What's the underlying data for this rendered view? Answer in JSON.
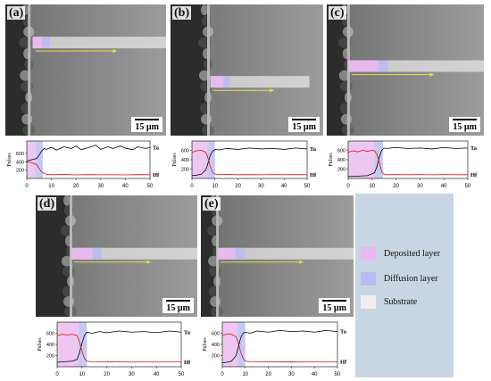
{
  "panels": [
    {
      "label": "(a)",
      "scale": "15 µm",
      "deposit_end": 3.5,
      "diff_end": 6.5
    },
    {
      "label": "(b)",
      "scale": "15 µm",
      "deposit_end": 6.5,
      "diff_end": 10
    },
    {
      "label": "(c)",
      "scale": "15 µm",
      "deposit_end": 11,
      "diff_end": 14.5
    },
    {
      "label": "(d)",
      "scale": "15 µm",
      "deposit_end": 8.5,
      "diff_end": 12
    },
    {
      "label": "(e)",
      "scale": "15 µm",
      "deposit_end": 6.5,
      "diff_end": 10
    }
  ],
  "legend": {
    "items": [
      {
        "label": "Deposited layer",
        "color": "#e9b8ef"
      },
      {
        "label": "Diffusion layer",
        "color": "#b9bcf0"
      },
      {
        "label": "Substrate",
        "color": "#eeeeee"
      }
    ]
  },
  "chart_data": [
    {
      "type": "line",
      "panel": "(a)",
      "ylabel": "Pulses",
      "ylim": [
        0,
        900
      ],
      "xlim": [
        0,
        50
      ],
      "x_ticks": [
        0,
        10,
        20,
        30,
        40,
        50
      ],
      "y_ticks": [
        200,
        400,
        600
      ],
      "series": [
        {
          "name": "Ta",
          "color": "#000000",
          "x": [
            0,
            2,
            4,
            5,
            6,
            7,
            8,
            10,
            12,
            15,
            18,
            20,
            22,
            25,
            28,
            30,
            33,
            35,
            38,
            40,
            43,
            45,
            48,
            50
          ],
          "y": [
            420,
            450,
            480,
            560,
            650,
            720,
            700,
            750,
            680,
            760,
            720,
            780,
            690,
            740,
            800,
            700,
            760,
            720,
            780,
            730,
            690,
            760,
            720,
            740
          ]
        },
        {
          "name": "Hf",
          "color": "#e01010",
          "x": [
            0,
            2,
            4,
            5,
            6,
            7,
            8,
            10,
            15,
            20,
            25,
            30,
            35,
            40,
            45,
            50
          ],
          "y": [
            400,
            380,
            330,
            240,
            160,
            120,
            100,
            90,
            95,
            85,
            92,
            88,
            90,
            86,
            92,
            90
          ]
        }
      ]
    },
    {
      "type": "line",
      "panel": "(b)",
      "ylabel": "Pulses",
      "ylim": [
        0,
        800
      ],
      "xlim": [
        0,
        50
      ],
      "x_ticks": [
        0,
        10,
        20,
        30,
        40,
        50
      ],
      "y_ticks": [
        200,
        400,
        600
      ],
      "series": [
        {
          "name": "Ta",
          "color": "#000000",
          "x": [
            0,
            2,
            4,
            6,
            7,
            8,
            9,
            10,
            12,
            15,
            20,
            25,
            30,
            35,
            40,
            45,
            50
          ],
          "y": [
            60,
            70,
            90,
            180,
            330,
            500,
            580,
            620,
            610,
            640,
            620,
            650,
            630,
            640,
            620,
            650,
            630
          ]
        },
        {
          "name": "Hf",
          "color": "#e01010",
          "x": [
            0,
            2,
            4,
            6,
            7,
            8,
            9,
            10,
            12,
            15,
            20,
            25,
            30,
            35,
            40,
            45,
            50
          ],
          "y": [
            560,
            590,
            600,
            560,
            430,
            250,
            130,
            90,
            80,
            85,
            80,
            82,
            78,
            84,
            80,
            82,
            80
          ]
        }
      ]
    },
    {
      "type": "line",
      "panel": "(c)",
      "ylabel": "Pulses",
      "ylim": [
        0,
        800
      ],
      "xlim": [
        0,
        50
      ],
      "x_ticks": [
        0,
        10,
        20,
        30,
        40,
        50
      ],
      "y_ticks": [
        200,
        400,
        600
      ],
      "series": [
        {
          "name": "Ta",
          "color": "#000000",
          "x": [
            0,
            4,
            8,
            11,
            12,
            13,
            14,
            15,
            16,
            20,
            25,
            30,
            35,
            40,
            45,
            50
          ],
          "y": [
            40,
            50,
            60,
            120,
            250,
            450,
            600,
            650,
            640,
            660,
            640,
            650,
            630,
            660,
            640,
            650
          ]
        },
        {
          "name": "Hf",
          "color": "#e01010",
          "x": [
            0,
            2,
            4,
            6,
            8,
            10,
            11,
            12,
            13,
            14,
            15,
            16,
            20,
            25,
            30,
            35,
            40,
            45,
            50
          ],
          "y": [
            560,
            590,
            570,
            600,
            580,
            600,
            590,
            520,
            350,
            150,
            90,
            80,
            82,
            80,
            84,
            78,
            82,
            80,
            80
          ]
        }
      ]
    },
    {
      "type": "line",
      "panel": "(d)",
      "ylabel": "Pulses",
      "ylim": [
        0,
        800
      ],
      "xlim": [
        0,
        50
      ],
      "x_ticks": [
        0,
        10,
        20,
        30,
        40,
        50
      ],
      "y_ticks": [
        200,
        400,
        600
      ],
      "series": [
        {
          "name": "Ta",
          "color": "#000000",
          "x": [
            0,
            3,
            6,
            8,
            9,
            10,
            11,
            12,
            14,
            17,
            20,
            25,
            30,
            35,
            40,
            45,
            50
          ],
          "y": [
            80,
            90,
            100,
            130,
            250,
            420,
            560,
            620,
            600,
            630,
            610,
            640,
            620,
            630,
            610,
            640,
            620
          ]
        },
        {
          "name": "Hf",
          "color": "#e01010",
          "x": [
            0,
            2,
            4,
            6,
            8,
            9,
            10,
            11,
            12,
            14,
            17,
            20,
            25,
            30,
            35,
            40,
            45,
            50
          ],
          "y": [
            560,
            580,
            570,
            580,
            560,
            450,
            280,
            150,
            100,
            90,
            88,
            85,
            88,
            84,
            86,
            84,
            86,
            84
          ]
        }
      ]
    },
    {
      "type": "line",
      "panel": "(e)",
      "ylabel": "Pulses",
      "ylim": [
        0,
        800
      ],
      "xlim": [
        0,
        50
      ],
      "x_ticks": [
        0,
        10,
        20,
        30,
        40,
        50
      ],
      "y_ticks": [
        200,
        400,
        600
      ],
      "series": [
        {
          "name": "Ta",
          "color": "#000000",
          "x": [
            0,
            2,
            4,
            6,
            7,
            8,
            9,
            10,
            12,
            15,
            20,
            25,
            30,
            35,
            40,
            45,
            50
          ],
          "y": [
            70,
            80,
            100,
            200,
            360,
            520,
            600,
            620,
            600,
            640,
            620,
            650,
            630,
            640,
            620,
            650,
            630
          ]
        },
        {
          "name": "Hf",
          "color": "#e01010",
          "x": [
            0,
            2,
            4,
            6,
            7,
            8,
            9,
            10,
            12,
            15,
            20,
            25,
            30,
            35,
            40,
            45,
            50
          ],
          "y": [
            560,
            590,
            580,
            540,
            420,
            260,
            150,
            100,
            90,
            88,
            86,
            85,
            87,
            84,
            86,
            84,
            86
          ]
        }
      ]
    }
  ]
}
